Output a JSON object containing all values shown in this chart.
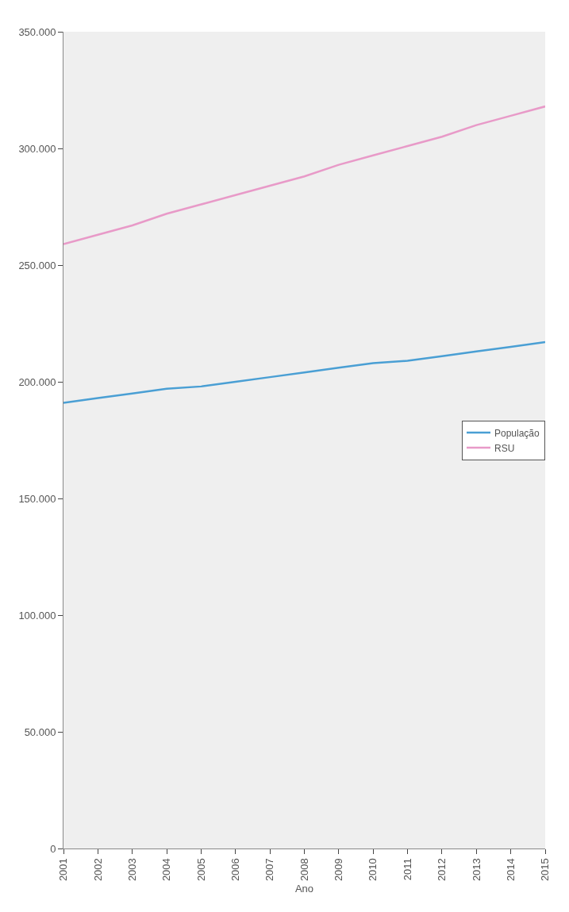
{
  "chart_data": {
    "type": "line",
    "xlabel": "Ano",
    "x": [
      2001,
      2002,
      2003,
      2004,
      2005,
      2006,
      2007,
      2008,
      2009,
      2010,
      2011,
      2012,
      2013,
      2014,
      2015
    ],
    "xlim": [
      2001,
      2015
    ],
    "xticks": [
      2001,
      2002,
      2003,
      2004,
      2005,
      2006,
      2007,
      2008,
      2009,
      2010,
      2011,
      2012,
      2013,
      2014,
      2015
    ],
    "ylim": [
      0,
      350000
    ],
    "yticks": [
      0,
      {
        "value": 50000,
        "label": "50.000"
      },
      {
        "value": 100000,
        "label": "100.000"
      },
      {
        "value": 150000,
        "label": "150.000"
      },
      {
        "value": 200000,
        "label": "200.000"
      },
      {
        "value": 250000,
        "label": "250.000"
      },
      {
        "value": 300000,
        "label": "300.000"
      },
      {
        "value": 350000,
        "label": "350.000"
      }
    ],
    "series": [
      {
        "name": "População",
        "color": "#4a9fd4",
        "values": [
          191000,
          193000,
          195000,
          197000,
          198000,
          200000,
          202000,
          204000,
          206000,
          208000,
          209000,
          211000,
          213000,
          215000,
          217000
        ]
      },
      {
        "name": "RSU",
        "color": "#e89ac8",
        "values": [
          259000,
          263000,
          267000,
          272000,
          276000,
          280000,
          284000,
          288000,
          293000,
          297000,
          301000,
          305000,
          310000,
          314000,
          318000
        ]
      }
    ],
    "legend": "right"
  }
}
